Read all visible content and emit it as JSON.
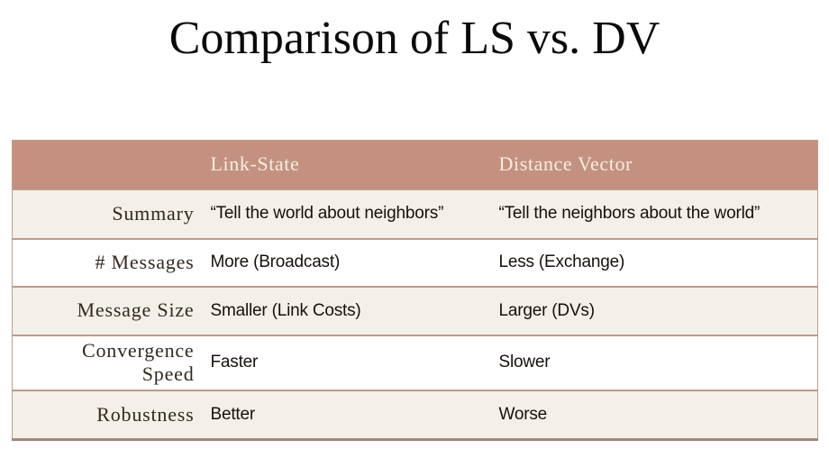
{
  "slide": {
    "title": "Comparison of LS vs. DV"
  },
  "table": {
    "columns": [
      {
        "label": ""
      },
      {
        "label": "Link-State"
      },
      {
        "label": "Distance Vector"
      }
    ],
    "rows": [
      {
        "label": "Summary",
        "link_state": "“Tell the world about neighbors”",
        "distance_vector": "“Tell the neighbors about the world”"
      },
      {
        "label": "# Messages",
        "link_state": "More (Broadcast)",
        "distance_vector": "Less (Exchange)"
      },
      {
        "label": "Message Size",
        "link_state": "Smaller (Link Costs)",
        "distance_vector": "Larger (DVs)"
      },
      {
        "label": "Convergence Speed",
        "link_state": "Faster",
        "distance_vector": "Slower"
      },
      {
        "label": "Robustness",
        "link_state": "Better",
        "distance_vector": "Worse"
      }
    ]
  },
  "colors": {
    "header_bg": "#c49181",
    "header_text": "#f6eedd",
    "row_beige_bg": "#f3efe9",
    "row_white_bg": "#ffffff",
    "row_border": "#bf9a87",
    "table_bottom_border": "#a1887a",
    "title_text": "#0a0a0a",
    "label_text": "#33291f",
    "cell_text": "#16110d"
  }
}
